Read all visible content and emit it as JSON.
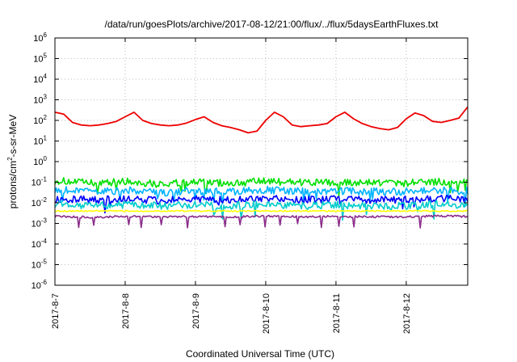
{
  "chart_data": {
    "type": "line",
    "title": "/data/run/goesPlots/archive/2017-08-12/21:00/flux/../flux/5daysEarthFluxes.txt",
    "xlabel": "Coordinated Universal Time (UTC)",
    "ylabel": "protons/cm²-s-sr-MeV",
    "ylabel_parts": {
      "before": "protons/cm",
      "sup": "2",
      "after": "-s-sr-MeV"
    },
    "y_scale": "log",
    "ylim": [
      1e-06,
      1000000.0
    ],
    "y_ticks": [
      {
        "base": "10",
        "exp": "-6",
        "value": 1e-06
      },
      {
        "base": "10",
        "exp": "-5",
        "value": 1e-05
      },
      {
        "base": "10",
        "exp": "-4",
        "value": 0.0001
      },
      {
        "base": "10",
        "exp": "-3",
        "value": 0.001
      },
      {
        "base": "10",
        "exp": "-2",
        "value": 0.01
      },
      {
        "base": "10",
        "exp": "-1",
        "value": 0.1
      },
      {
        "base": "10",
        "exp": "0",
        "value": 1
      },
      {
        "base": "10",
        "exp": "1",
        "value": 10
      },
      {
        "base": "10",
        "exp": "2",
        "value": 100
      },
      {
        "base": "10",
        "exp": "3",
        "value": 1000
      },
      {
        "base": "10",
        "exp": "4",
        "value": 10000
      },
      {
        "base": "10",
        "exp": "5",
        "value": 100000
      },
      {
        "base": "10",
        "exp": "6",
        "value": 1000000
      }
    ],
    "x_ticks": [
      "2017-8-7",
      "2017-8-8",
      "2017-8-9",
      "2017-8-10",
      "2017-8-11",
      "2017-8-12"
    ],
    "xlim": [
      "2017-08-07 00:00",
      "2017-08-12 21:00"
    ],
    "grid": true,
    "series": [
      {
        "color": "#00e000",
        "typical": 0.1,
        "t": [
          "2017-08-07 00:00",
          "2017-08-07 12:00",
          "2017-08-08 00:00",
          "2017-08-08 12:00",
          "2017-08-09 00:00",
          "2017-08-09 12:00",
          "2017-08-10 00:00",
          "2017-08-10 12:00",
          "2017-08-11 00:00",
          "2017-08-11 12:00",
          "2017-08-12 00:00",
          "2017-08-12 12:00",
          "2017-08-12 21:00"
        ],
        "values": [
          0.12,
          0.09,
          0.11,
          0.08,
          0.1,
          0.09,
          0.11,
          0.1,
          0.09,
          0.1,
          0.09,
          0.11,
          0.1
        ]
      },
      {
        "color": "#00b4ff",
        "typical": 0.04,
        "t": [
          "2017-08-07 00:00",
          "2017-08-07 12:00",
          "2017-08-08 00:00",
          "2017-08-08 12:00",
          "2017-08-09 00:00",
          "2017-08-09 12:00",
          "2017-08-10 00:00",
          "2017-08-10 12:00",
          "2017-08-11 00:00",
          "2017-08-11 12:00",
          "2017-08-12 00:00",
          "2017-08-12 12:00",
          "2017-08-12 21:00"
        ],
        "values": [
          0.045,
          0.035,
          0.04,
          0.032,
          0.038,
          0.034,
          0.042,
          0.036,
          0.038,
          0.035,
          0.036,
          0.04,
          0.038
        ]
      },
      {
        "color": "#0000ff",
        "typical": 0.015,
        "t": [
          "2017-08-07 00:00",
          "2017-08-07 12:00",
          "2017-08-08 00:00",
          "2017-08-08 12:00",
          "2017-08-09 00:00",
          "2017-08-09 12:00",
          "2017-08-10 00:00",
          "2017-08-10 12:00",
          "2017-08-11 00:00",
          "2017-08-11 12:00",
          "2017-08-12 00:00",
          "2017-08-12 12:00",
          "2017-08-12 21:00"
        ],
        "values": [
          0.016,
          0.014,
          0.015,
          0.013,
          0.015,
          0.014,
          0.016,
          0.014,
          0.015,
          0.014,
          0.014,
          0.016,
          0.015
        ]
      },
      {
        "color": "#00cccc",
        "typical": 0.008,
        "t": [
          "2017-08-07 00:00",
          "2017-08-07 12:00",
          "2017-08-08 00:00",
          "2017-08-08 12:00",
          "2017-08-09 00:00",
          "2017-08-09 12:00",
          "2017-08-10 00:00",
          "2017-08-10 12:00",
          "2017-08-11 00:00",
          "2017-08-11 12:00",
          "2017-08-12 00:00",
          "2017-08-12 12:00",
          "2017-08-12 21:00"
        ],
        "values": [
          0.009,
          0.007,
          0.008,
          0.007,
          0.008,
          0.007,
          0.009,
          0.007,
          0.008,
          0.007,
          0.007,
          0.009,
          0.008
        ]
      },
      {
        "color": "#ffff00",
        "typical": 0.004,
        "t": [
          "2017-08-07 00:00",
          "2017-08-07 12:00",
          "2017-08-08 00:00",
          "2017-08-08 12:00",
          "2017-08-09 00:00",
          "2017-08-09 12:00",
          "2017-08-10 00:00",
          "2017-08-10 12:00",
          "2017-08-11 00:00",
          "2017-08-11 12:00",
          "2017-08-12 00:00",
          "2017-08-12 12:00",
          "2017-08-12 21:00"
        ],
        "values": [
          0.004,
          0.004,
          0.004,
          0.004,
          0.004,
          0.004,
          0.004,
          0.004,
          0.004,
          0.004,
          0.004,
          0.004,
          0.004
        ]
      },
      {
        "color": "#8b2b8b",
        "typical": 0.0022,
        "t": [
          "2017-08-07 00:00",
          "2017-08-07 12:00",
          "2017-08-08 00:00",
          "2017-08-08 12:00",
          "2017-08-09 00:00",
          "2017-08-09 12:00",
          "2017-08-10 00:00",
          "2017-08-10 12:00",
          "2017-08-11 00:00",
          "2017-08-11 12:00",
          "2017-08-12 00:00",
          "2017-08-12 12:00",
          "2017-08-12 21:00"
        ],
        "values": [
          0.0022,
          0.002,
          0.0022,
          0.0021,
          0.0022,
          0.0021,
          0.0023,
          0.0021,
          0.0022,
          0.0021,
          0.0021,
          0.0023,
          0.0022
        ]
      },
      {
        "color": "#ee0000",
        "t": [
          "2017-08-07 00:00",
          "2017-08-07 03:00",
          "2017-08-07 06:00",
          "2017-08-07 09:00",
          "2017-08-07 12:00",
          "2017-08-07 15:00",
          "2017-08-07 18:00",
          "2017-08-07 21:00",
          "2017-08-08 00:00",
          "2017-08-08 03:00",
          "2017-08-08 06:00",
          "2017-08-08 09:00",
          "2017-08-08 12:00",
          "2017-08-08 15:00",
          "2017-08-08 18:00",
          "2017-08-08 21:00",
          "2017-08-09 00:00",
          "2017-08-09 03:00",
          "2017-08-09 06:00",
          "2017-08-09 09:00",
          "2017-08-09 12:00",
          "2017-08-09 15:00",
          "2017-08-09 18:00",
          "2017-08-09 21:00",
          "2017-08-10 00:00",
          "2017-08-10 03:00",
          "2017-08-10 06:00",
          "2017-08-10 09:00",
          "2017-08-10 12:00",
          "2017-08-10 15:00",
          "2017-08-10 18:00",
          "2017-08-10 21:00",
          "2017-08-11 00:00",
          "2017-08-11 03:00",
          "2017-08-11 06:00",
          "2017-08-11 09:00",
          "2017-08-11 12:00",
          "2017-08-11 15:00",
          "2017-08-11 18:00",
          "2017-08-11 21:00",
          "2017-08-12 00:00",
          "2017-08-12 03:00",
          "2017-08-12 06:00",
          "2017-08-12 09:00",
          "2017-08-12 12:00",
          "2017-08-12 15:00",
          "2017-08-12 18:00",
          "2017-08-12 21:00"
        ],
        "values": [
          250,
          200,
          80,
          60,
          55,
          60,
          70,
          90,
          150,
          250,
          100,
          70,
          60,
          55,
          60,
          75,
          110,
          150,
          80,
          55,
          45,
          35,
          25,
          30,
          100,
          250,
          150,
          60,
          50,
          55,
          60,
          70,
          150,
          250,
          120,
          70,
          50,
          40,
          35,
          45,
          120,
          230,
          170,
          90,
          80,
          100,
          130,
          450
        ]
      }
    ]
  }
}
